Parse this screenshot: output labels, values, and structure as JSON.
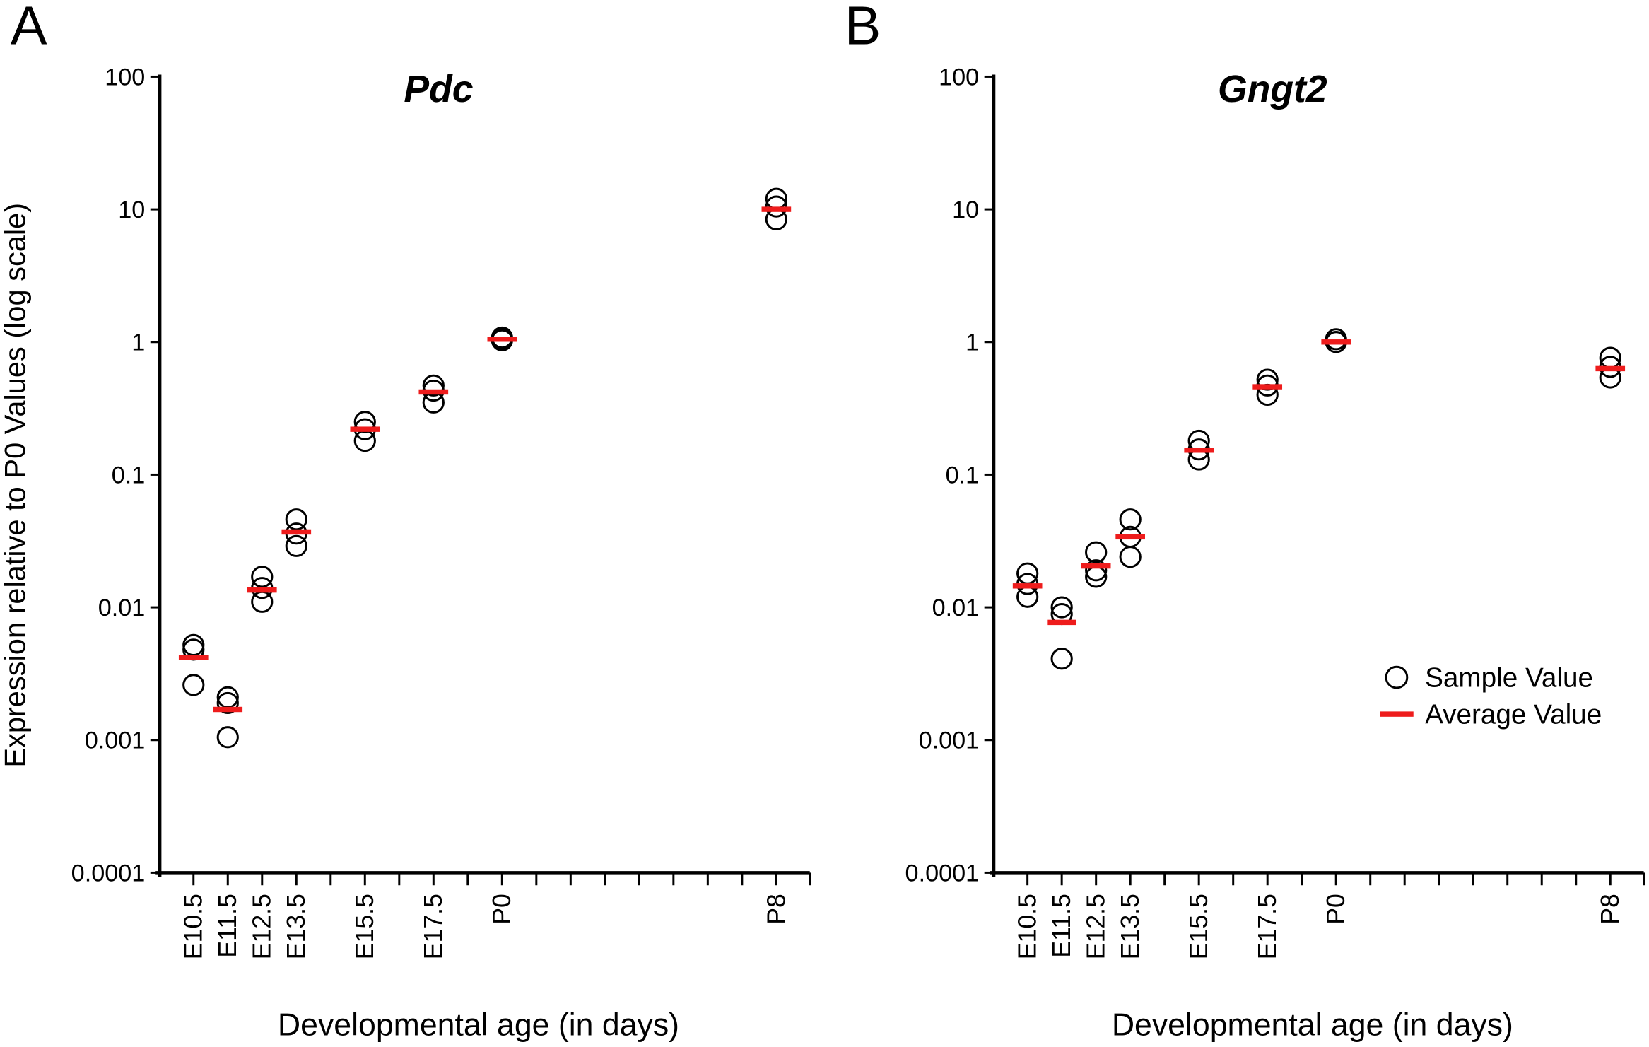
{
  "chart_data": [
    {
      "type": "dot",
      "label": "A",
      "title": "Pdc",
      "y_label": "Expression relative to P0 Values (log scale)",
      "x_label": "Developmental age (in days)",
      "categories": [
        "E10.5",
        "E11.5",
        "E12.5",
        "E13.5",
        null,
        "E15.5",
        null,
        "E17.5",
        null,
        "P0",
        null,
        null,
        null,
        null,
        null,
        null,
        null,
        "P8"
      ],
      "series": [
        {
          "name": "Sample Value",
          "marker": "circle",
          "color": "#000000",
          "values": [
            [
              0.0052,
              0.0048,
              0.0026
            ],
            [
              0.0021,
              0.0019,
              0.00105
            ],
            [
              0.017,
              0.014,
              0.011
            ],
            [
              0.046,
              0.036,
              0.029
            ],
            null,
            [
              0.25,
              0.22,
              0.18
            ],
            null,
            [
              0.47,
              0.43,
              0.35
            ],
            null,
            [
              1.08,
              1.05,
              1.03
            ],
            null,
            null,
            null,
            null,
            null,
            null,
            null,
            [
              12,
              10.5,
              8.4
            ]
          ]
        },
        {
          "name": "Average Value",
          "marker": "dash",
          "color": "#ee1c1c",
          "values": [
            0.0042,
            0.0017,
            0.0135,
            0.037,
            null,
            0.22,
            null,
            0.42,
            null,
            1.05,
            null,
            null,
            null,
            null,
            null,
            null,
            null,
            10
          ]
        }
      ],
      "ylim": [
        0.0001,
        100
      ],
      "yticks": [
        0.0001,
        0.001,
        0.01,
        0.1,
        1,
        10,
        100
      ],
      "log_y": true
    },
    {
      "type": "dot",
      "label": "B",
      "title": "Gngt2",
      "x_label": "Developmental age (in days)",
      "categories": [
        "E10.5",
        "E11.5",
        "E12.5",
        "E13.5",
        null,
        "E15.5",
        null,
        "E17.5",
        null,
        "P0",
        null,
        null,
        null,
        null,
        null,
        null,
        null,
        "P8"
      ],
      "series": [
        {
          "name": "Sample Value",
          "marker": "circle",
          "color": "#000000",
          "values": [
            [
              0.018,
              0.015,
              0.012
            ],
            [
              0.01,
              0.0089,
              0.0041
            ],
            [
              0.026,
              0.019,
              0.017
            ],
            [
              0.046,
              0.034,
              0.024
            ],
            null,
            [
              0.18,
              0.155,
              0.13
            ],
            null,
            [
              0.52,
              0.47,
              0.4
            ],
            null,
            [
              1.05,
              1.0,
              1.0
            ],
            null,
            null,
            null,
            null,
            null,
            null,
            null,
            [
              0.76,
              0.65,
              0.54
            ]
          ]
        },
        {
          "name": "Average Value",
          "marker": "dash",
          "color": "#ee1c1c",
          "values": [
            0.0145,
            0.0077,
            0.0205,
            0.034,
            null,
            0.153,
            null,
            0.46,
            null,
            1.0,
            null,
            null,
            null,
            null,
            null,
            null,
            null,
            0.63
          ]
        }
      ],
      "ylim": [
        0.0001,
        100
      ],
      "yticks": [
        0.0001,
        0.001,
        0.01,
        0.1,
        1,
        10,
        100
      ],
      "log_y": true,
      "legend": "center-right"
    }
  ]
}
